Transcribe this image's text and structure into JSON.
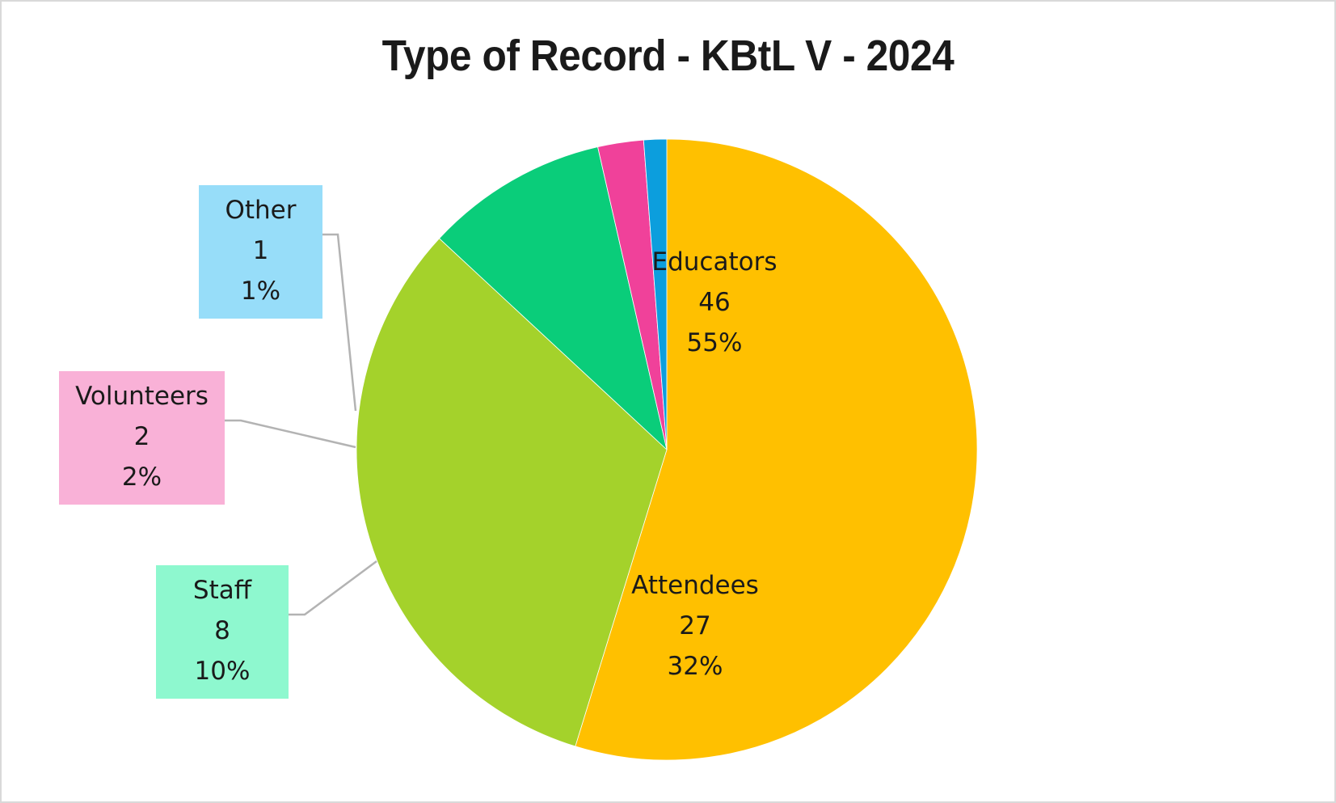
{
  "chart_data": {
    "type": "pie",
    "title": "Type of Record - KBtL V - 2024",
    "categories": [
      "Educators",
      "Attendees",
      "Staff",
      "Volunteers",
      "Other"
    ],
    "values": [
      46,
      27,
      8,
      2,
      1
    ],
    "percentages": [
      "55%",
      "32%",
      "10%",
      "2%",
      "1%"
    ],
    "colors": [
      "#FFC000",
      "#A4D22B",
      "#0ACD7A",
      "#F0419A",
      "#0C9EDD"
    ],
    "label_box_colors": {
      "Staff": "#8EF8CF",
      "Volunteers": "#F9B1D7",
      "Other": "#97DDF9"
    },
    "start_angle_deg": 0,
    "direction": "clockwise",
    "legend": "none",
    "data_labels": "category, value, percentage"
  },
  "labels": {
    "educators": {
      "name": "Educators",
      "value": "46",
      "pct": "55%"
    },
    "attendees": {
      "name": "Attendees",
      "value": "27",
      "pct": "32%"
    },
    "staff": {
      "name": "Staff",
      "value": "8",
      "pct": "10%"
    },
    "volunteers": {
      "name": "Volunteers",
      "value": "2",
      "pct": "2%"
    },
    "other": {
      "name": "Other",
      "value": "1",
      "pct": "1%"
    }
  }
}
